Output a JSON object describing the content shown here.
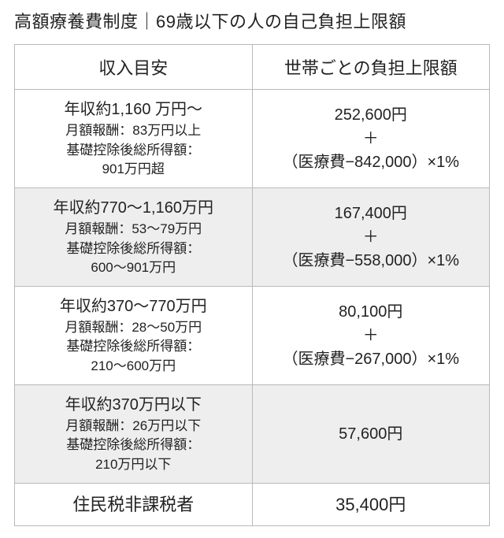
{
  "title": "高額療養費制度｜69歳以下の人の自己負担上限額",
  "table": {
    "type": "table",
    "columns": [
      "収入目安",
      "世帯ごとの負担上限額"
    ],
    "border_color": "#b9b9b9",
    "alt_row_bg": "#eeeeee",
    "background_color": "#ffffff",
    "text_color": "#222222",
    "header_fontsize": 22,
    "main_fontsize": 20,
    "sub_fontsize": 17,
    "rows": [
      {
        "income_main": "年収約1,160 万円〜",
        "income_sub1": "月額報酬：83万円以上",
        "income_sub2": "基礎控除後総所得額：",
        "income_sub3": "901万円超",
        "limit_l1": "252,600円",
        "limit_l2": "＋",
        "limit_l3": "（医療費−842,000）×1%",
        "alt": false
      },
      {
        "income_main": "年収約770〜1,160万円",
        "income_sub1": "月額報酬：53〜79万円",
        "income_sub2": "基礎控除後総所得額：",
        "income_sub3": "600〜901万円",
        "limit_l1": "167,400円",
        "limit_l2": "＋",
        "limit_l3": "（医療費−558,000）×1%",
        "alt": true
      },
      {
        "income_main": "年収約370〜770万円",
        "income_sub1": "月額報酬：28〜50万円",
        "income_sub2": "基礎控除後総所得額：",
        "income_sub3": "210〜600万円",
        "limit_l1": "80,100円",
        "limit_l2": "＋",
        "limit_l3": "（医療費−267,000）×1%",
        "alt": false
      },
      {
        "income_main": "年収約370万円以下",
        "income_sub1": "月額報酬：26万円以下",
        "income_sub2": "基礎控除後総所得額：",
        "income_sub3": "210万円以下",
        "limit_l1": "57,600円",
        "limit_l2": "",
        "limit_l3": "",
        "alt": true
      },
      {
        "income_main": "住民税非課税者",
        "income_sub1": "",
        "income_sub2": "",
        "income_sub3": "",
        "limit_l1": "35,400円",
        "limit_l2": "",
        "limit_l3": "",
        "alt": false,
        "simple": true
      }
    ]
  }
}
